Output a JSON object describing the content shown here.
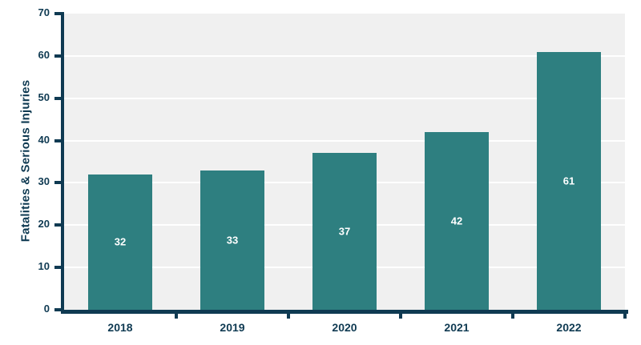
{
  "chart_data": {
    "type": "bar",
    "title": "",
    "xlabel": "",
    "ylabel": "Fatalities & Serious Injuries",
    "categories": [
      "2018",
      "2019",
      "2020",
      "2021",
      "2022"
    ],
    "values": [
      32,
      33,
      37,
      42,
      61
    ],
    "bar_labels": [
      "32",
      "33",
      "37",
      "42",
      "61"
    ],
    "ylim": [
      0,
      70
    ],
    "yticks": [
      0,
      10,
      20,
      30,
      40,
      50,
      60,
      70
    ],
    "grid": "horizontal white gridlines on gray plot background",
    "legend": "none",
    "colors": {
      "bar": "#2E7F80",
      "axis": "#0F3A52",
      "plot_background": "#F0F0F0",
      "gridline": "#FFFFFF",
      "bar_label": "#FFFFFF",
      "page_background": "#FFFFFF"
    }
  }
}
